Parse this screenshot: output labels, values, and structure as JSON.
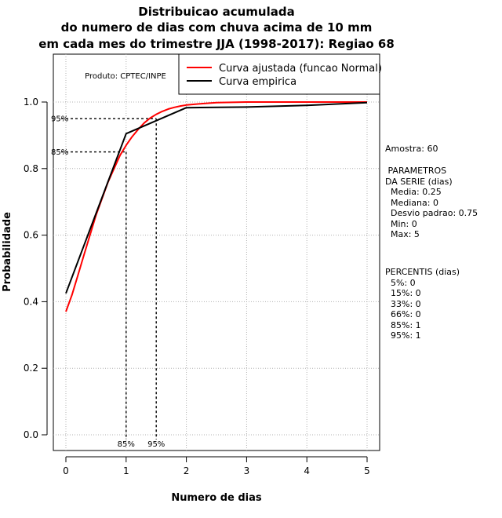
{
  "chart_data": {
    "type": "line",
    "title_lines": [
      "Distribuicao acumulada",
      "do numero de dias com chuva acima de 10 mm",
      "em cada mes do trimestre JJA (1998-2017): Regiao 68"
    ],
    "xlabel": "Numero de dias",
    "ylabel": "Probabilidade",
    "xlim": [
      -0.2,
      5.2
    ],
    "ylim": [
      -0.04,
      1.14
    ],
    "xticks": [
      0,
      1,
      2,
      3,
      4,
      5
    ],
    "xtick_labels": [
      "0",
      "1",
      "2",
      "3",
      "4",
      "5"
    ],
    "yticks": [
      0.0,
      0.2,
      0.4,
      0.6,
      0.8,
      1.0
    ],
    "ytick_labels": [
      "0.0",
      "0.2",
      "0.4",
      "0.6",
      "0.8",
      "1.0"
    ],
    "grid": true,
    "product_label": "Produto: CPTEC/INPE",
    "legend": {
      "position": "top-right",
      "entries": [
        {
          "label": "Curva ajustada (funcao Normal)",
          "color": "#ff0000"
        },
        {
          "label": "Curva empirica",
          "color": "#000000"
        }
      ]
    },
    "series": [
      {
        "name": "Curva ajustada (funcao Normal)",
        "color": "#ff0000",
        "x": [
          0,
          0.1,
          0.2,
          0.3,
          0.4,
          0.5,
          0.6,
          0.7,
          0.8,
          0.9,
          1.0,
          1.1,
          1.2,
          1.3,
          1.4,
          1.5,
          1.6,
          1.7,
          1.8,
          1.9,
          2.0,
          2.25,
          2.5,
          2.75,
          3.0,
          3.5,
          4.0,
          4.5,
          5.0
        ],
        "y": [
          0.37,
          0.42,
          0.48,
          0.54,
          0.6,
          0.66,
          0.71,
          0.76,
          0.8,
          0.84,
          0.87,
          0.896,
          0.918,
          0.937,
          0.952,
          0.963,
          0.972,
          0.979,
          0.984,
          0.988,
          0.991,
          0.995,
          0.998,
          0.999,
          1.0,
          1.0,
          1.0,
          1.0,
          1.0
        ]
      },
      {
        "name": "Curva empirica",
        "color": "#000000",
        "x": [
          0,
          1,
          2,
          3,
          4,
          5
        ],
        "y": [
          0.425,
          0.905,
          0.983,
          0.985,
          0.99,
          0.998
        ]
      }
    ],
    "percentile_markers": [
      {
        "label": "85%",
        "prob": 0.85,
        "x": 1.0
      },
      {
        "label": "95%",
        "prob": 0.95,
        "x": 1.5
      }
    ]
  },
  "side_panel": {
    "sample": "Amostra: 60",
    "params_title_1": " PARAMETROS",
    "params_title_2": "DA SERIE (dias)",
    "params": [
      "  Media: 0.25",
      "  Mediana: 0",
      "  Desvio padrao: 0.75",
      "  Min: 0",
      "  Max: 5"
    ],
    "percentis_title": "PERCENTIS (dias)",
    "percentis": [
      "  5%: 0",
      "  15%: 0",
      "  33%: 0",
      "  66%: 0",
      "  85%: 1",
      "  95%: 1"
    ]
  }
}
